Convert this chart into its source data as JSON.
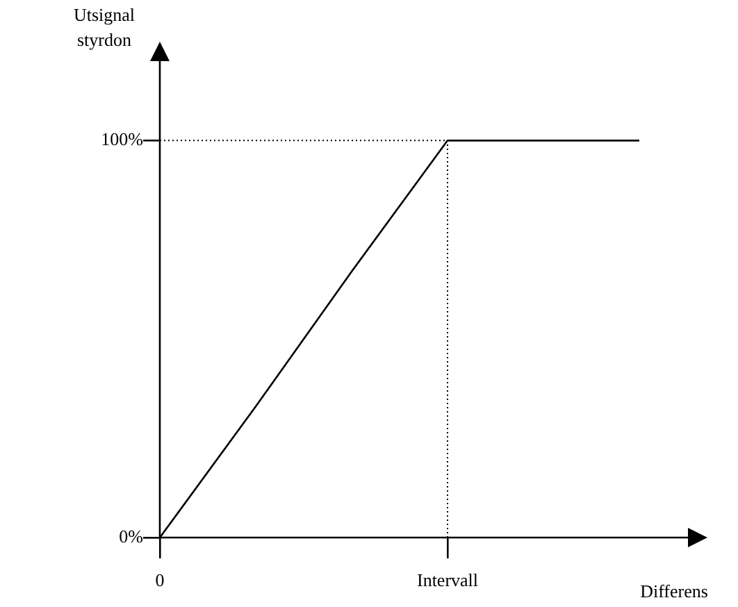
{
  "chart_data": {
    "type": "line",
    "xlabel": "Differens",
    "ylabel": "Utsignal styrdon",
    "categories": [
      "0",
      null,
      null,
      "Intervall",
      null,
      null
    ],
    "series": [
      {
        "color": "#000000",
        "values": [
          0,
          33,
          67,
          100,
          100,
          100
        ]
      }
    ],
    "ylim": [
      0,
      120
    ],
    "yticks": [
      {
        "value": 0,
        "label": "0%"
      },
      {
        "value": 100,
        "label": "100%"
      }
    ],
    "ref_lines": [
      {
        "axis": "y",
        "value": 100,
        "line_style": "dotted",
        "color": "#000000"
      },
      {
        "axis": "x",
        "value": "Intervall",
        "line_style": "dotted",
        "color": "#000000"
      }
    ],
    "grid": false,
    "legend": false,
    "marker": "none",
    "line_style": "solid"
  }
}
